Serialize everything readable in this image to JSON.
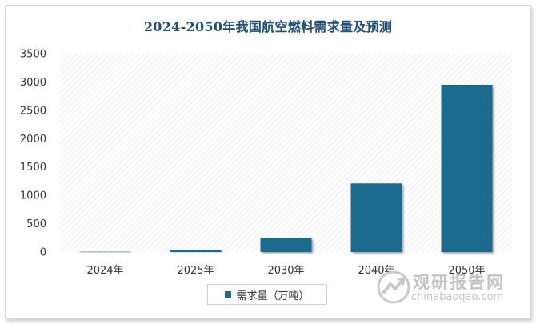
{
  "chart_data": {
    "type": "bar",
    "title": "2024-2050年我国航空燃料需求量及预测",
    "categories": [
      "2024年",
      "2025年",
      "2030年",
      "2040年",
      "2050年"
    ],
    "series": [
      {
        "name": "需求量（万吨）",
        "values": [
          5,
          40,
          250,
          1210,
          2950
        ]
      }
    ],
    "ylim": [
      0,
      3500
    ],
    "yticks": [
      0,
      500,
      1000,
      1500,
      2000,
      2500,
      3000,
      3500
    ],
    "grid": false,
    "legend_position": "bottom",
    "colors": {
      "bar": "#1f6b8e",
      "title": "#1f4e79"
    }
  },
  "watermark": {
    "name": "观研报告网",
    "url": "chinabaogao.com"
  }
}
